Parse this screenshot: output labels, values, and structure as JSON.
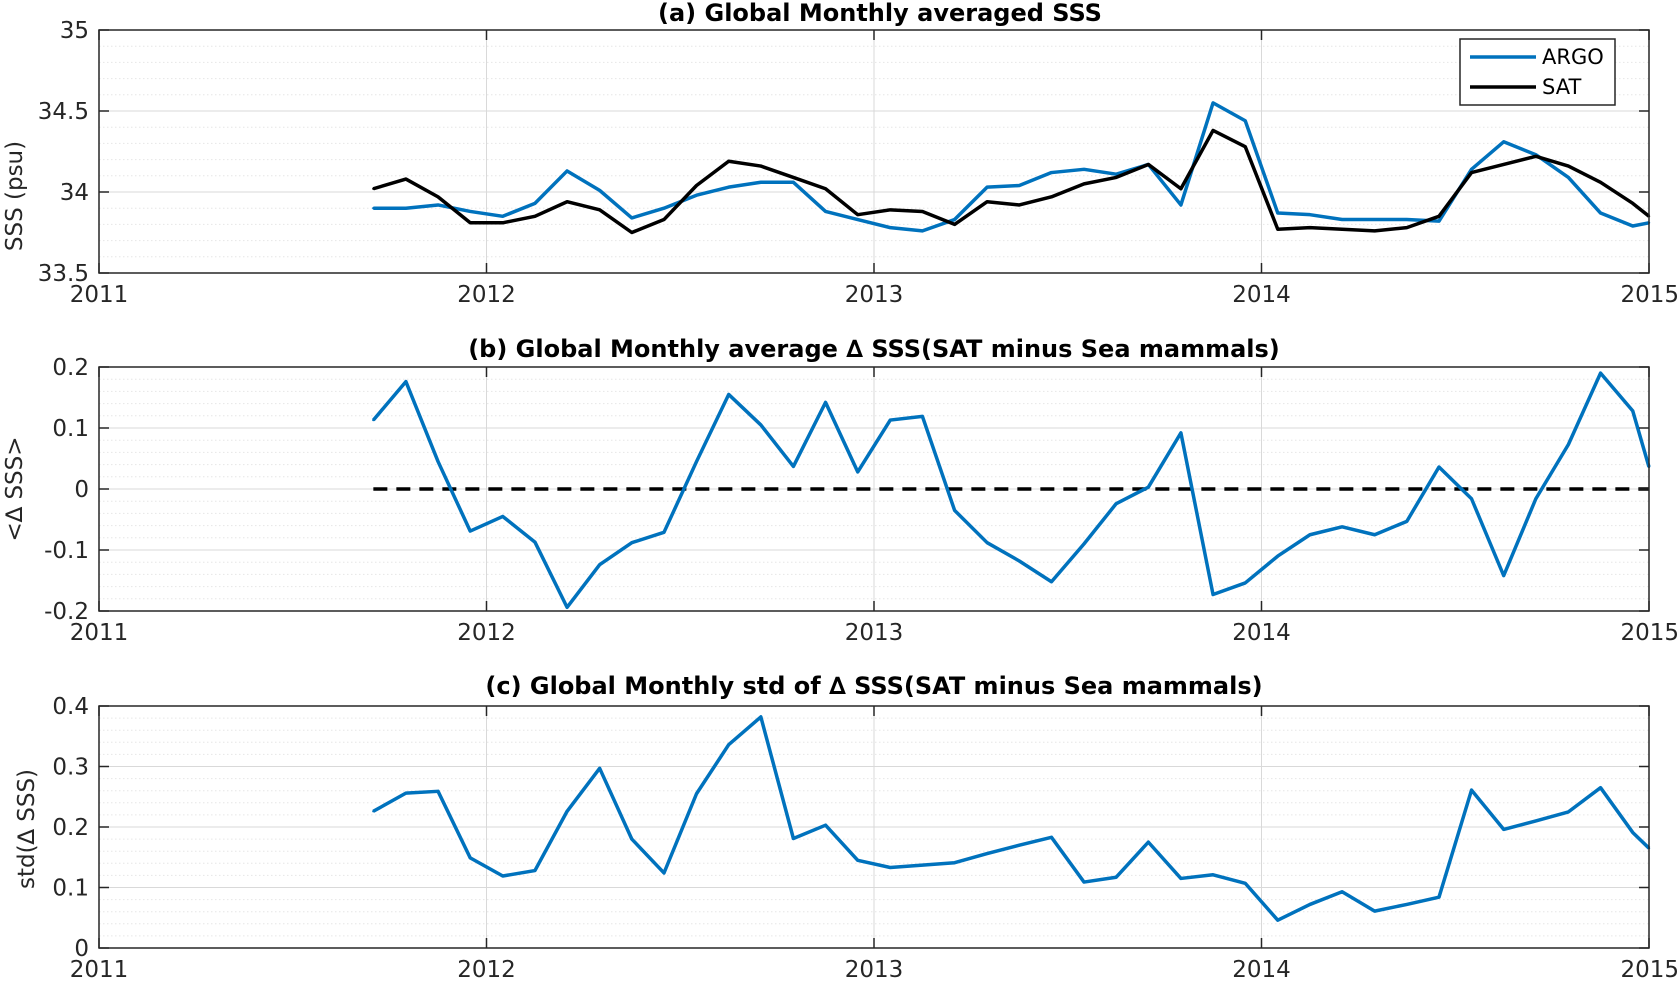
{
  "colors": {
    "argo": "#0072BD",
    "sat": "#000000",
    "grid_major": "#d9d9d9",
    "grid_minor": "#e6e6e6",
    "axis": "#262626"
  },
  "chart_data": [
    {
      "type": "line",
      "title": "(a) Global Monthly averaged SSS",
      "xlabel": "",
      "ylabel": "SSS (psu)",
      "xlim": [
        2011,
        2015
      ],
      "ylim": [
        33.5,
        35
      ],
      "xticks": [
        2011,
        2012,
        2013,
        2014,
        2015
      ],
      "xticklabels": [
        "2011",
        "2012",
        "2013",
        "2014",
        "2015"
      ],
      "yticks": [
        33.5,
        34,
        34.5,
        35
      ],
      "yticklabels": [
        "33.5",
        "34",
        "34.5",
        "35"
      ],
      "grid": true,
      "legend": {
        "placement": "top-right",
        "entries": [
          "ARGO",
          "SAT"
        ]
      },
      "x": [
        2011.708,
        2011.792,
        2011.875,
        2011.958,
        2012.042,
        2012.125,
        2012.208,
        2012.292,
        2012.375,
        2012.458,
        2012.542,
        2012.625,
        2012.708,
        2012.792,
        2012.875,
        2012.958,
        2013.042,
        2013.125,
        2013.208,
        2013.292,
        2013.375,
        2013.458,
        2013.542,
        2013.625,
        2013.708,
        2013.792,
        2013.875,
        2013.958,
        2014.042,
        2014.125,
        2014.208,
        2014.292,
        2014.375,
        2014.458,
        2014.542,
        2014.625,
        2014.708,
        2014.792,
        2014.875,
        2014.958,
        2015.0
      ],
      "series": [
        {
          "name": "ARGO",
          "color": "#0072BD",
          "values": [
            33.9,
            33.9,
            33.92,
            33.88,
            33.85,
            33.93,
            34.13,
            34.01,
            33.84,
            33.9,
            33.98,
            34.03,
            34.06,
            34.06,
            33.88,
            33.83,
            33.78,
            33.76,
            33.83,
            34.03,
            34.04,
            34.12,
            34.14,
            34.11,
            34.17,
            33.92,
            34.55,
            34.44,
            33.87,
            33.86,
            33.83,
            33.83,
            33.83,
            33.82,
            34.14,
            34.31,
            34.23,
            34.09,
            33.87,
            33.79,
            33.81
          ]
        },
        {
          "name": "SAT",
          "color": "#000000",
          "values": [
            34.02,
            34.08,
            33.97,
            33.81,
            33.81,
            33.85,
            33.94,
            33.89,
            33.75,
            33.83,
            34.04,
            34.19,
            34.16,
            34.09,
            34.02,
            33.86,
            33.89,
            33.88,
            33.8,
            33.94,
            33.92,
            33.97,
            34.05,
            34.09,
            34.17,
            34.02,
            34.38,
            34.28,
            33.77,
            33.78,
            33.77,
            33.76,
            33.78,
            33.85,
            34.12,
            34.17,
            34.22,
            34.16,
            34.06,
            33.93,
            33.85
          ]
        }
      ]
    },
    {
      "type": "line",
      "title": "(b) Global Monthly average ∆ SSS(SAT minus Sea mammals)",
      "xlabel": "",
      "ylabel": "<∆ SSS>",
      "xlim": [
        2011,
        2015
      ],
      "ylim": [
        -0.2,
        0.2
      ],
      "xticks": [
        2011,
        2012,
        2013,
        2014,
        2015
      ],
      "xticklabels": [
        "2011",
        "2012",
        "2013",
        "2014",
        "2015"
      ],
      "yticks": [
        -0.2,
        -0.1,
        0,
        0.1,
        0.2
      ],
      "yticklabels": [
        "-0.2",
        "-0.1",
        "0",
        "0.1",
        "0.2"
      ],
      "grid": true,
      "reference_line": {
        "y": 0,
        "style": "dashed",
        "color": "#000000",
        "x_range": [
          2011.708,
          2015.0
        ]
      },
      "x": [
        2011.708,
        2011.792,
        2011.875,
        2011.958,
        2012.042,
        2012.125,
        2012.208,
        2012.292,
        2012.375,
        2012.458,
        2012.542,
        2012.625,
        2012.708,
        2012.792,
        2012.875,
        2012.958,
        2013.042,
        2013.125,
        2013.208,
        2013.292,
        2013.375,
        2013.458,
        2013.542,
        2013.625,
        2013.708,
        2013.792,
        2013.875,
        2013.958,
        2014.042,
        2014.125,
        2014.208,
        2014.292,
        2014.375,
        2014.458,
        2014.542,
        2014.625,
        2014.708,
        2014.792,
        2014.875,
        2014.958,
        2015.0
      ],
      "series": [
        {
          "color": "#0072BD",
          "values": [
            0.113,
            0.176,
            0.045,
            -0.069,
            -0.045,
            -0.087,
            -0.194,
            -0.124,
            -0.088,
            -0.071,
            0.045,
            0.155,
            0.105,
            0.037,
            0.142,
            0.028,
            0.113,
            0.119,
            -0.035,
            -0.088,
            -0.118,
            -0.152,
            -0.09,
            -0.024,
            0.003,
            0.092,
            -0.173,
            -0.154,
            -0.11,
            -0.075,
            -0.062,
            -0.075,
            -0.053,
            0.036,
            -0.016,
            -0.142,
            -0.016,
            0.073,
            0.19,
            0.128,
            0.036
          ]
        }
      ]
    },
    {
      "type": "line",
      "title": "(c) Global Monthly std of ∆ SSS(SAT minus Sea mammals)",
      "xlabel": "",
      "ylabel": "std(∆ SSS)",
      "xlim": [
        2011,
        2015
      ],
      "ylim": [
        0,
        0.4
      ],
      "xticks": [
        2011,
        2012,
        2013,
        2014,
        2015
      ],
      "xticklabels": [
        "2011",
        "2012",
        "2013",
        "2014",
        "2015"
      ],
      "yticks": [
        0,
        0.1,
        0.2,
        0.3,
        0.4
      ],
      "yticklabels": [
        "0",
        "0.1",
        "0.2",
        "0.3",
        "0.4"
      ],
      "grid": true,
      "x": [
        2011.708,
        2011.792,
        2011.875,
        2011.958,
        2012.042,
        2012.125,
        2012.208,
        2012.292,
        2012.375,
        2012.458,
        2012.542,
        2012.625,
        2012.708,
        2012.792,
        2012.875,
        2012.958,
        2013.042,
        2013.125,
        2013.208,
        2013.292,
        2013.375,
        2013.458,
        2013.542,
        2013.625,
        2013.708,
        2013.792,
        2013.875,
        2013.958,
        2014.042,
        2014.125,
        2014.208,
        2014.292,
        2014.375,
        2014.458,
        2014.542,
        2014.625,
        2014.708,
        2014.792,
        2014.875,
        2014.958,
        2015.0
      ],
      "series": [
        {
          "color": "#0072BD",
          "values": [
            0.226,
            0.256,
            0.259,
            0.149,
            0.119,
            0.128,
            0.226,
            0.297,
            0.18,
            0.124,
            0.255,
            0.336,
            0.382,
            0.181,
            0.203,
            0.145,
            0.133,
            0.137,
            0.141,
            0.156,
            0.17,
            0.183,
            0.109,
            0.117,
            0.175,
            0.115,
            0.121,
            0.107,
            0.046,
            0.072,
            0.093,
            0.061,
            0.072,
            0.084,
            0.261,
            0.196,
            0.21,
            0.225,
            0.265,
            0.191,
            0.165
          ]
        }
      ]
    }
  ]
}
